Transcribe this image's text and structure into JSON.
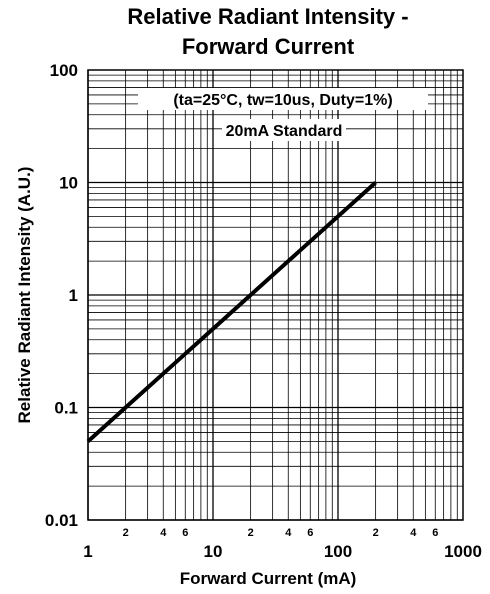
{
  "chart_data": {
    "type": "line",
    "title_lines": [
      "Relative Radiant Intensity -",
      "Forward Current"
    ],
    "xlabel": "Forward Current (mA)",
    "ylabel": "Relative Radiant Intensity (A.U.)",
    "x_scale": "log",
    "y_scale": "log",
    "xlim": [
      1,
      1000
    ],
    "ylim": [
      0.01,
      100
    ],
    "x_tick_labels": [
      "1",
      "10",
      "100",
      "1000"
    ],
    "y_tick_labels": [
      "100",
      "10",
      "1",
      "0.1",
      "0.01"
    ],
    "x_minor_labels": [
      "2",
      "4",
      "6",
      "2",
      "4",
      "6",
      "2",
      "4",
      "6"
    ],
    "grid": true,
    "annotations": [
      "(ta=25°C, tw=10us, Duty=1%)",
      "20mA Standard"
    ],
    "series": [
      {
        "x": [
          1,
          2,
          5,
          10,
          20,
          50,
          100,
          200
        ],
        "y": [
          0.05,
          0.1,
          0.25,
          0.5,
          1,
          2.5,
          5,
          10
        ]
      }
    ],
    "colors": {
      "line": "#000000",
      "grid": "#000000",
      "background": "#ffffff"
    }
  }
}
